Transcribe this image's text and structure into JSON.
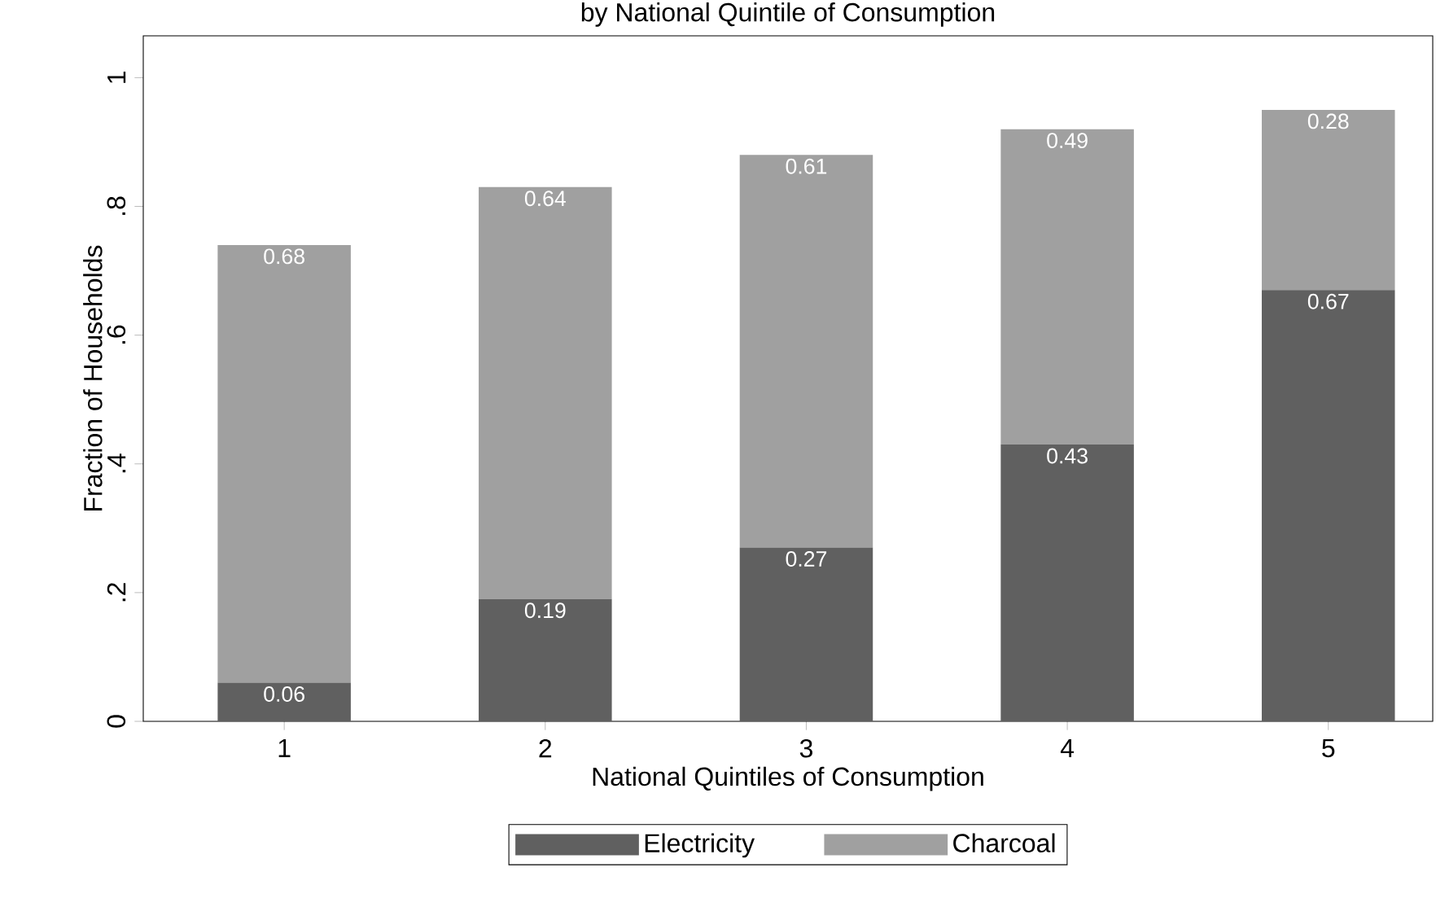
{
  "chart_data": {
    "type": "bar",
    "stacked": true,
    "title": "by National Quintile of Consumption",
    "xlabel": "National Quintiles of Consumption",
    "ylabel": "Fraction of Households",
    "categories": [
      "1",
      "2",
      "3",
      "4",
      "5"
    ],
    "series": [
      {
        "name": "Electricity",
        "color": "#606060",
        "values": [
          0.06,
          0.19,
          0.27,
          0.43,
          0.67
        ]
      },
      {
        "name": "Charcoal",
        "color": "#a0a0a0",
        "values": [
          0.68,
          0.64,
          0.61,
          0.49,
          0.28
        ]
      }
    ],
    "ylim": [
      0,
      1.065
    ],
    "yticks": [
      {
        "value": 0,
        "label": "0"
      },
      {
        "value": 0.2,
        "label": ".2"
      },
      {
        "value": 0.4,
        "label": ".4"
      },
      {
        "value": 0.6,
        "label": ".6"
      },
      {
        "value": 0.8,
        "label": ".8"
      },
      {
        "value": 1,
        "label": "1"
      }
    ],
    "data_labels": true,
    "legend": "bottom",
    "grid": false
  }
}
